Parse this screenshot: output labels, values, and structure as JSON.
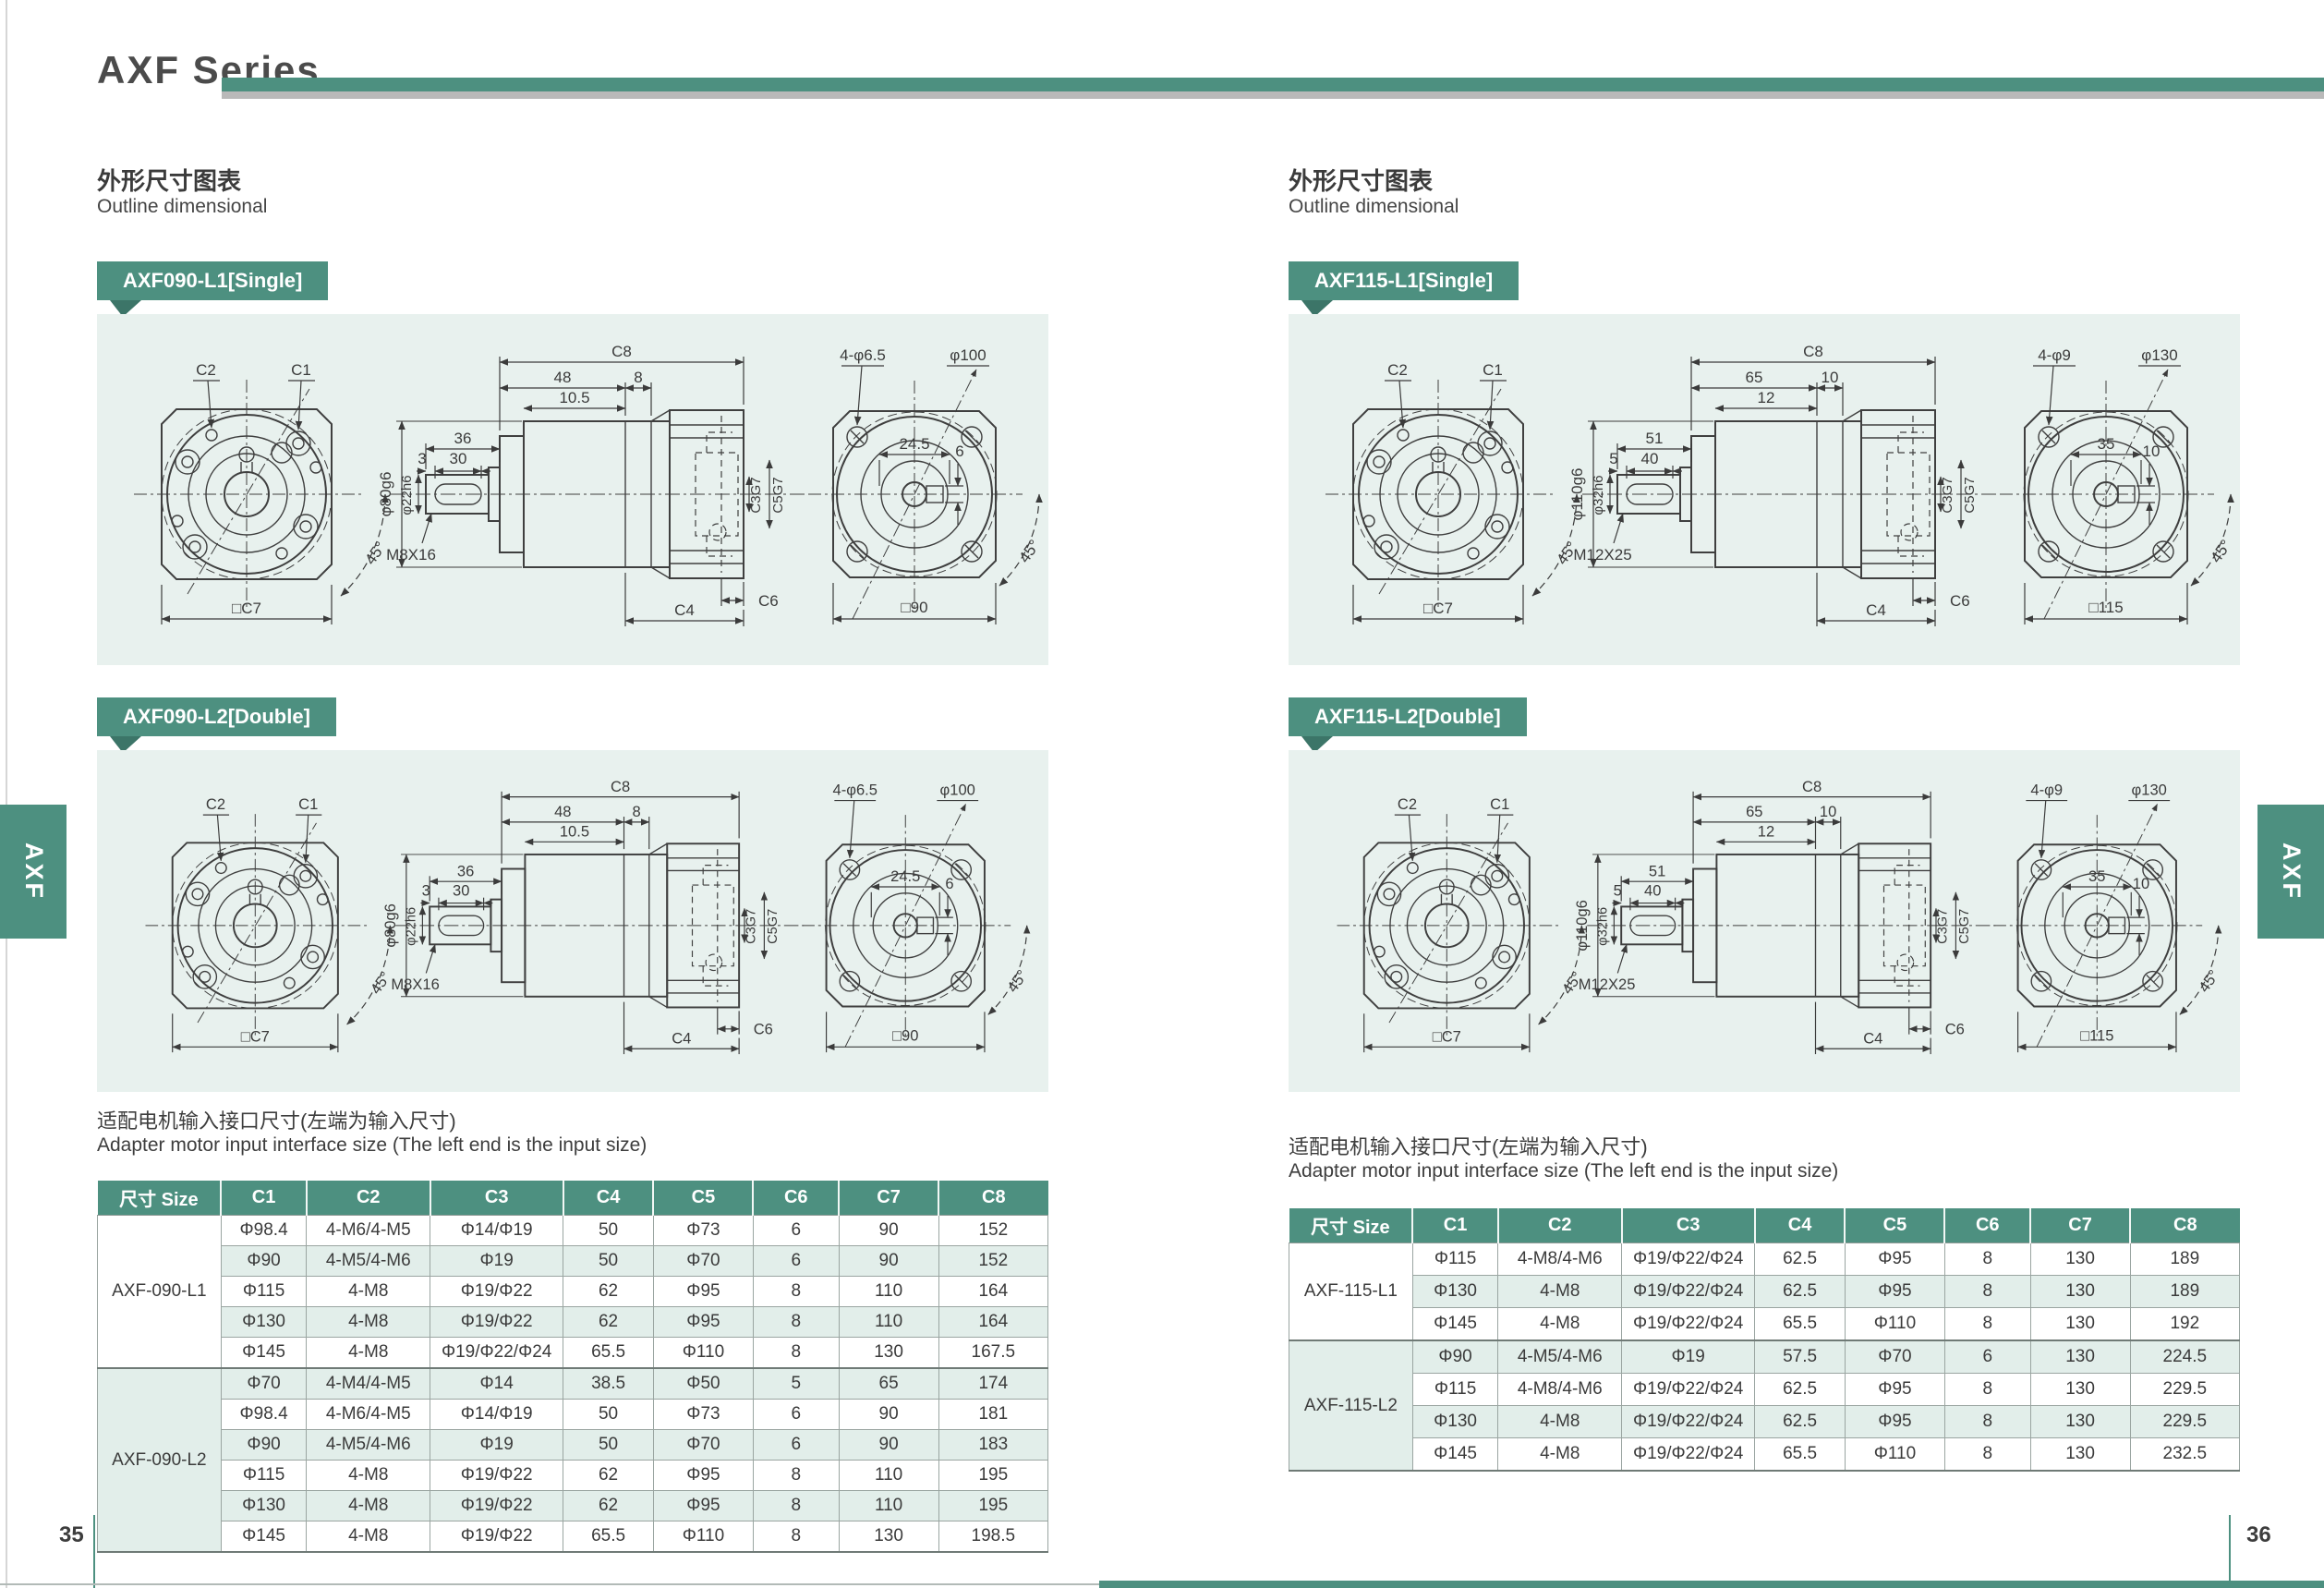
{
  "page": {
    "title": "AXF Series",
    "side_tab": "AXF",
    "page_number_left": "35",
    "page_number_right": "36"
  },
  "colors": {
    "accent": "#4D9080",
    "panel_bg": "#E8F1EE",
    "alt_row": "#E2EEEA",
    "bar_gray": "#B9B9B9"
  },
  "sections": {
    "left": {
      "heading_cn": "外形尺寸图表",
      "heading_en": "Outline dimensional",
      "badge_single": "AXF090-L1[Single]",
      "badge_double": "AXF090-L2[Double]",
      "adapter_cn": "适配电机输入接口尺寸(左端为输入尺寸)",
      "adapter_en": "Adapter motor input interface size (The left end is the input size)"
    },
    "right": {
      "heading_cn": "外形尺寸图表",
      "heading_en": "Outline dimensional",
      "badge_single": "AXF115-L1[Single]",
      "badge_double": "AXF115-L2[Double]",
      "adapter_cn": "适配电机输入接口尺寸(左端为输入尺寸)",
      "adapter_en": "Adapter motor input interface size (The left end is the input size)"
    }
  },
  "drawings": {
    "d090": {
      "c1": "C1",
      "c2": "C2",
      "angle_l": "45°",
      "csq": "□C7",
      "c8": "C8",
      "dim_a": "48",
      "dim_b": "8",
      "dim_c": "10.5",
      "dim_d": "36",
      "dim_e": "3",
      "dim_f": "30",
      "shaft": "φ80g6",
      "bore": "φ22h6",
      "tap": "M8X16",
      "c3": "C3G7",
      "c5": "C5G7",
      "c6": "C6",
      "c4": "C4",
      "holes": "4-φ6.5",
      "fdia": "φ100",
      "dim_g": "24.5",
      "dim_h": "6",
      "angle_r": "45°",
      "fsq": "□90"
    },
    "d115": {
      "c1": "C1",
      "c2": "C2",
      "angle_l": "45°",
      "csq": "□C7",
      "c8": "C8",
      "dim_a": "65",
      "dim_b": "10",
      "dim_c": "12",
      "dim_d": "51",
      "dim_e": "5",
      "dim_f": "40",
      "shaft": "φ110g6",
      "bore": "φ32h6",
      "tap": "M12X25",
      "c3": "C3G7",
      "c5": "C5G7",
      "c6": "C6",
      "c4": "C4",
      "holes": "4-φ9",
      "fdia": "φ130",
      "dim_g": "35",
      "dim_h": "10",
      "angle_r": "45°",
      "fsq": "□115"
    }
  },
  "tables": {
    "left": {
      "headers": [
        "尺寸 Size",
        "C1",
        "C2",
        "C3",
        "C4",
        "C5",
        "C6",
        "C7",
        "C8"
      ],
      "groups": [
        {
          "name": "AXF-090-L1",
          "rows": [
            [
              "Φ98.4",
              "4-M6/4-M5",
              "Φ14/Φ19",
              "50",
              "Φ73",
              "6",
              "90",
              "152"
            ],
            [
              "Φ90",
              "4-M5/4-M6",
              "Φ19",
              "50",
              "Φ70",
              "6",
              "90",
              "152"
            ],
            [
              "Φ115",
              "4-M8",
              "Φ19/Φ22",
              "62",
              "Φ95",
              "8",
              "110",
              "164"
            ],
            [
              "Φ130",
              "4-M8",
              "Φ19/Φ22",
              "62",
              "Φ95",
              "8",
              "110",
              "164"
            ],
            [
              "Φ145",
              "4-M8",
              "Φ19/Φ22/Φ24",
              "65.5",
              "Φ110",
              "8",
              "130",
              "167.5"
            ]
          ]
        },
        {
          "name": "AXF-090-L2",
          "rows": [
            [
              "Φ70",
              "4-M4/4-M5",
              "Φ14",
              "38.5",
              "Φ50",
              "5",
              "65",
              "174"
            ],
            [
              "Φ98.4",
              "4-M6/4-M5",
              "Φ14/Φ19",
              "50",
              "Φ73",
              "6",
              "90",
              "181"
            ],
            [
              "Φ90",
              "4-M5/4-M6",
              "Φ19",
              "50",
              "Φ70",
              "6",
              "90",
              "183"
            ],
            [
              "Φ115",
              "4-M8",
              "Φ19/Φ22",
              "62",
              "Φ95",
              "8",
              "110",
              "195"
            ],
            [
              "Φ130",
              "4-M8",
              "Φ19/Φ22",
              "62",
              "Φ95",
              "8",
              "110",
              "195"
            ],
            [
              "Φ145",
              "4-M8",
              "Φ19/Φ22",
              "65.5",
              "Φ110",
              "8",
              "130",
              "198.5"
            ]
          ]
        }
      ]
    },
    "right": {
      "headers": [
        "尺寸 Size",
        "C1",
        "C2",
        "C3",
        "C4",
        "C5",
        "C6",
        "C7",
        "C8"
      ],
      "groups": [
        {
          "name": "AXF-115-L1",
          "rows": [
            [
              "Φ115",
              "4-M8/4-M6",
              "Φ19/Φ22/Φ24",
              "62.5",
              "Φ95",
              "8",
              "130",
              "189"
            ],
            [
              "Φ130",
              "4-M8",
              "Φ19/Φ22/Φ24",
              "62.5",
              "Φ95",
              "8",
              "130",
              "189"
            ],
            [
              "Φ145",
              "4-M8",
              "Φ19/Φ22/Φ24",
              "65.5",
              "Φ110",
              "8",
              "130",
              "192"
            ]
          ]
        },
        {
          "name": "AXF-115-L2",
          "rows": [
            [
              "Φ90",
              "4-M5/4-M6",
              "Φ19",
              "57.5",
              "Φ70",
              "6",
              "130",
              "224.5"
            ],
            [
              "Φ115",
              "4-M8/4-M6",
              "Φ19/Φ22/Φ24",
              "62.5",
              "Φ95",
              "8",
              "130",
              "229.5"
            ],
            [
              "Φ130",
              "4-M8",
              "Φ19/Φ22/Φ24",
              "62.5",
              "Φ95",
              "8",
              "130",
              "229.5"
            ],
            [
              "Φ145",
              "4-M8",
              "Φ19/Φ22/Φ24",
              "65.5",
              "Φ110",
              "8",
              "130",
              "232.5"
            ]
          ]
        }
      ]
    }
  }
}
